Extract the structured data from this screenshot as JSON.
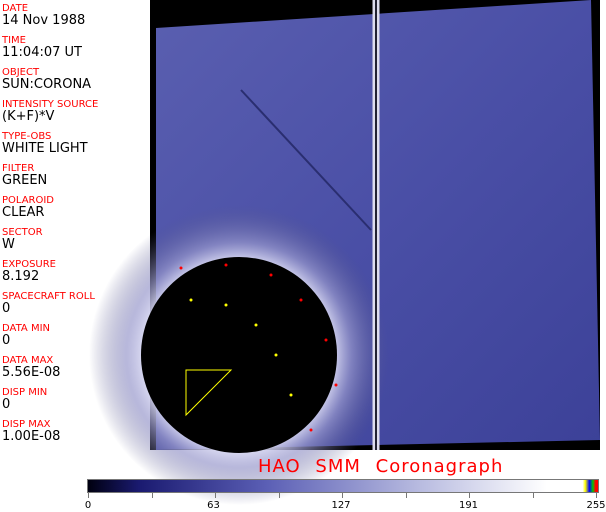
{
  "fields": [
    {
      "label": "DATE",
      "value": "14 Nov 1988"
    },
    {
      "label": "TIME",
      "value": "11:04:07 UT"
    },
    {
      "label": "OBJECT",
      "value": "SUN:CORONA"
    },
    {
      "label": "INTENSITY SOURCE",
      "value": "(K+F)*V"
    },
    {
      "label": "TYPE-OBS",
      "value": "WHITE LIGHT"
    },
    {
      "label": "FILTER",
      "value": "GREEN"
    },
    {
      "label": "POLAROID",
      "value": "CLEAR"
    },
    {
      "label": "SECTOR",
      "value": "W"
    },
    {
      "label": "EXPOSURE",
      "value": "8.192"
    },
    {
      "label": "SPACECRAFT ROLL",
      "value": "0"
    },
    {
      "label": "DATA MIN",
      "value": "0"
    },
    {
      "label": "DATA MAX",
      "value": "5.56E-08"
    },
    {
      "label": "DISP MIN",
      "value": "0"
    },
    {
      "label": "DISP MAX",
      "value": "1.00E-08"
    }
  ],
  "title": "HAO   SMM Coronagraph",
  "colorbar": {
    "ticks": [
      "0",
      "63",
      "127",
      "191",
      "255"
    ],
    "min": 0,
    "max": 255,
    "colors": {
      "low": "#000010",
      "mid": "#5b5fb5",
      "high": "#ffffff"
    }
  },
  "colors": {
    "label": "#ff0000",
    "image_bg": "#000000"
  }
}
